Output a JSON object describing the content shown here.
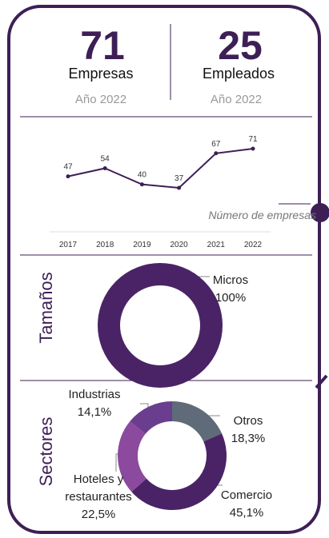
{
  "kpis": [
    {
      "value": "71",
      "label": "Empresas",
      "period": "Año 2022"
    },
    {
      "value": "25",
      "label": "Empleados",
      "period": "Año 2022"
    }
  ],
  "chart_data": [
    {
      "type": "line",
      "categories": [
        "2017",
        "2018",
        "2019",
        "2020",
        "2021",
        "2022"
      ],
      "series": [
        {
          "name": "Número de empresas",
          "color": "#3d1f56",
          "values": [
            47,
            54,
            40,
            37,
            67,
            71
          ]
        }
      ]
    },
    {
      "type": "pie",
      "title": "Tamaños",
      "categories": [
        "Micros"
      ],
      "values": [
        100
      ],
      "value_labels": [
        "100%"
      ],
      "colors": [
        "#4a2366"
      ]
    },
    {
      "type": "pie",
      "title": "Sectores",
      "categories": [
        "Otros",
        "Comercio",
        "Hoteles y restaurantes",
        "Industrias"
      ],
      "values": [
        18.3,
        45.1,
        22.5,
        14.1
      ],
      "value_labels": [
        "18,3%",
        "45,1%",
        "22,5%",
        "14,1%"
      ],
      "colors": [
        "#5f6b78",
        "#4a2366",
        "#8b4a9e",
        "#6a3d8f"
      ]
    }
  ]
}
